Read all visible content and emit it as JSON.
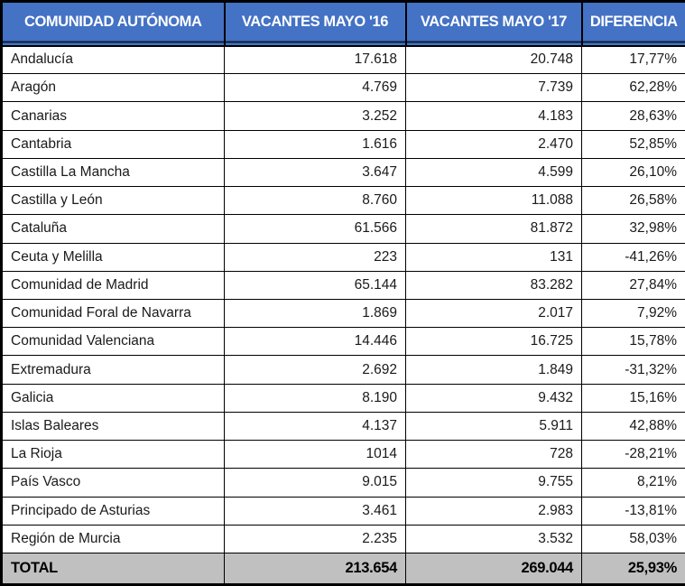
{
  "table": {
    "columns": [
      {
        "label": "COMUNIDAD AUTÓNOMA"
      },
      {
        "label": "VACANTES MAYO '16"
      },
      {
        "label": "VACANTES MAYO '17"
      },
      {
        "label": "DIFERENCIA"
      }
    ],
    "rows": [
      {
        "community": "Andalucía",
        "may16": "17.618",
        "may17": "20.748",
        "difference": "17,77%"
      },
      {
        "community": "Aragón",
        "may16": "4.769",
        "may17": "7.739",
        "difference": "62,28%"
      },
      {
        "community": "Canarias",
        "may16": "3.252",
        "may17": "4.183",
        "difference": "28,63%"
      },
      {
        "community": "Cantabria",
        "may16": "1.616",
        "may17": "2.470",
        "difference": "52,85%"
      },
      {
        "community": "Castilla La Mancha",
        "may16": "3.647",
        "may17": "4.599",
        "difference": "26,10%"
      },
      {
        "community": "Castilla y León",
        "may16": "8.760",
        "may17": "11.088",
        "difference": "26,58%"
      },
      {
        "community": "Cataluña",
        "may16": "61.566",
        "may17": "81.872",
        "difference": "32,98%"
      },
      {
        "community": "Ceuta y Melilla",
        "may16": "223",
        "may17": "131",
        "difference": "-41,26%"
      },
      {
        "community": "Comunidad de Madrid",
        "may16": "65.144",
        "may17": "83.282",
        "difference": "27,84%"
      },
      {
        "community": "Comunidad Foral de Navarra",
        "may16": "1.869",
        "may17": "2.017",
        "difference": "7,92%"
      },
      {
        "community": "Comunidad Valenciana",
        "may16": "14.446",
        "may17": "16.725",
        "difference": "15,78%"
      },
      {
        "community": "Extremadura",
        "may16": "2.692",
        "may17": "1.849",
        "difference": "-31,32%"
      },
      {
        "community": "Galicia",
        "may16": "8.190",
        "may17": "9.432",
        "difference": "15,16%"
      },
      {
        "community": "Islas Baleares",
        "may16": "4.137",
        "may17": "5.911",
        "difference": "42,88%"
      },
      {
        "community": "La Rioja",
        "may16": "1014",
        "may17": "728",
        "difference": "-28,21%"
      },
      {
        "community": "País Vasco",
        "may16": "9.015",
        "may17": "9.755",
        "difference": "8,21%"
      },
      {
        "community": "Principado de Asturias",
        "may16": "3.461",
        "may17": "2.983",
        "difference": "-13,81%"
      },
      {
        "community": "Región de Murcia",
        "may16": "2.235",
        "may17": "3.532",
        "difference": "58,03%"
      }
    ],
    "total": {
      "label": "TOTAL",
      "may16": "213.654",
      "may17": "269.044",
      "difference": "25,93%"
    }
  },
  "colors": {
    "header_bg": "#4472C4",
    "header_text": "#FFFFFF",
    "header_rule": "#0D1C36",
    "total_bg": "#C0C0C0",
    "grid": "#000000"
  }
}
